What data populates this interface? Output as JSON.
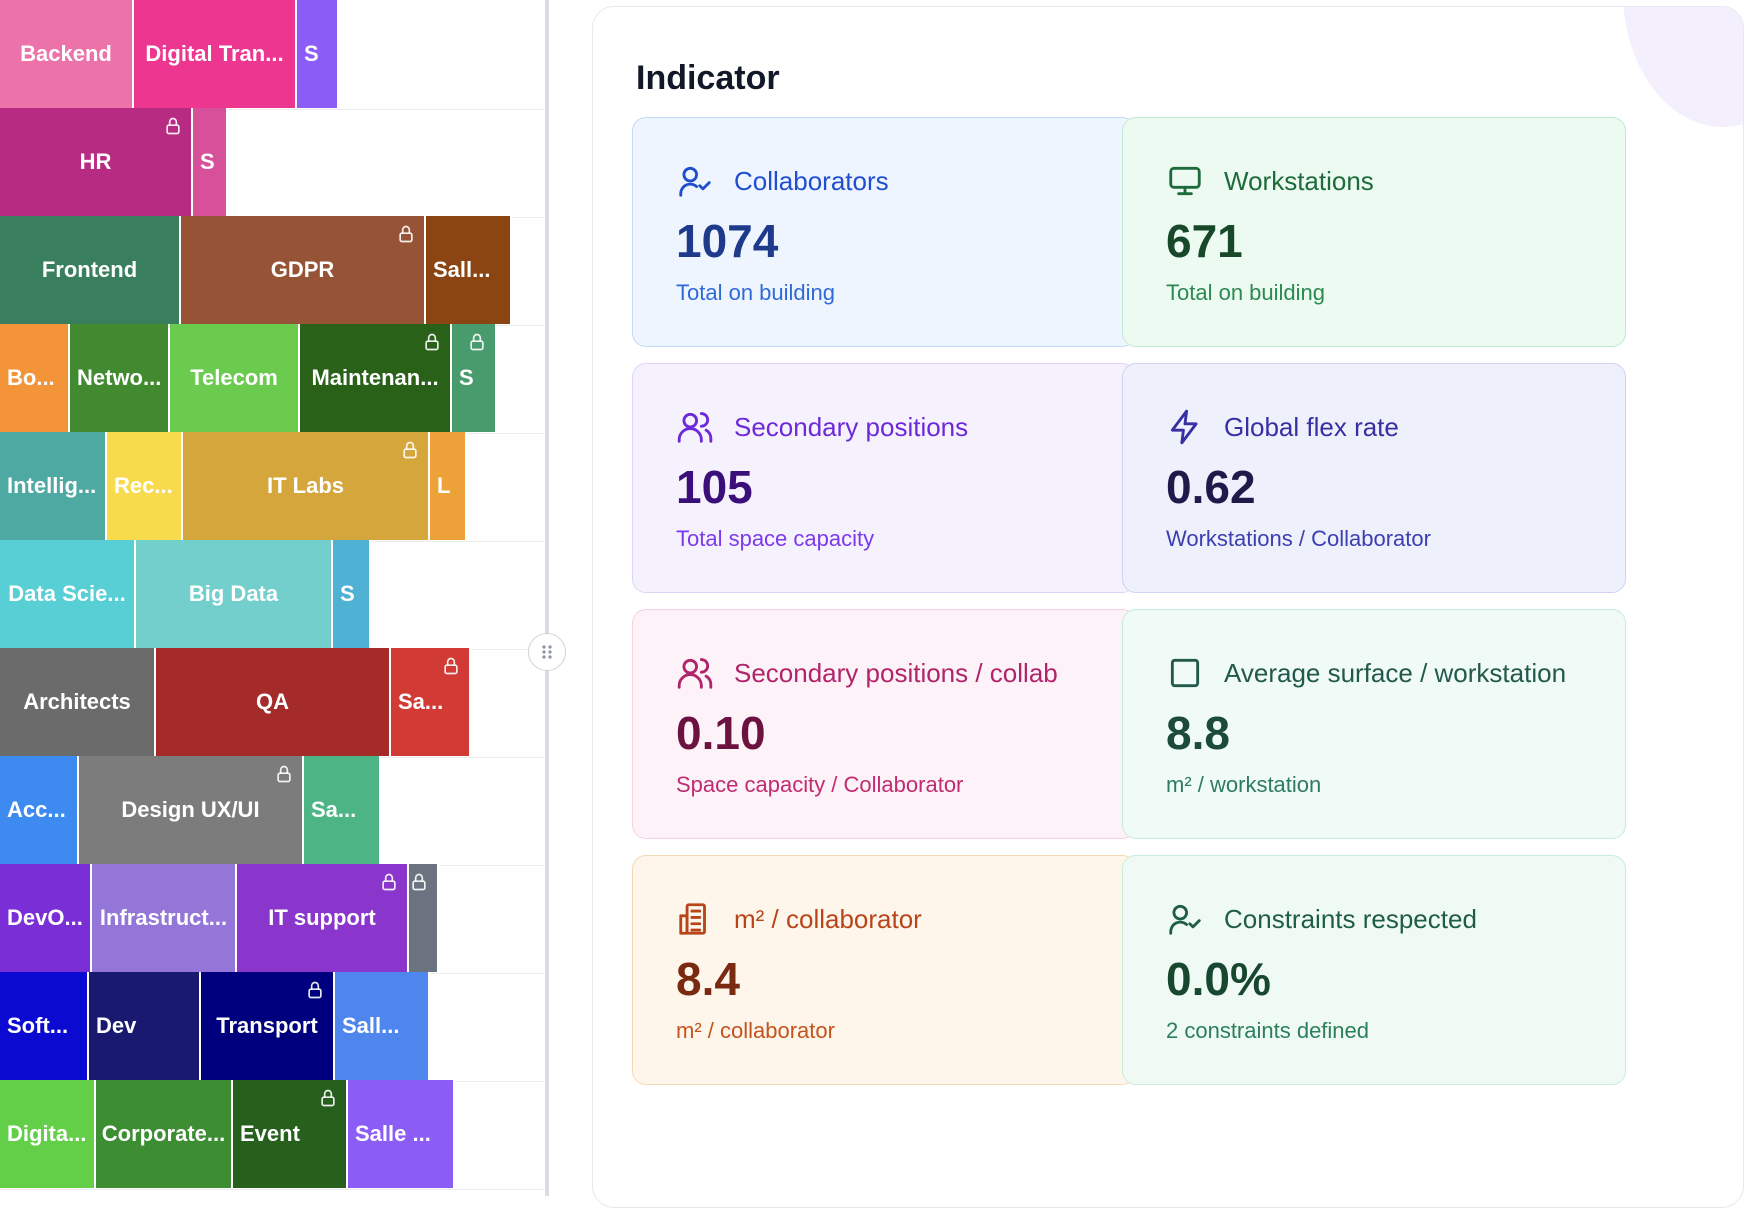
{
  "treemap": {
    "rows": [
      [
        {
          "label": "Backend",
          "color": "#ec72aa"
        },
        {
          "label": "Digital Tran...",
          "color": "#ec3690"
        },
        {
          "label": "S",
          "color": "#8b5cf6"
        }
      ],
      [
        {
          "label": "HR",
          "color": "#b72b82",
          "locked": true
        },
        {
          "label": "S",
          "color": "#d6509a"
        }
      ],
      [
        {
          "label": "Frontend",
          "color": "#3a7f5d"
        },
        {
          "label": "GDPR",
          "color": "#975335",
          "locked": true
        },
        {
          "label": "Sall...",
          "color": "#8b4513"
        }
      ],
      [
        {
          "label": "Bo...",
          "color": "#f29437"
        },
        {
          "label": "Netwo...",
          "color": "#418a30"
        },
        {
          "label": "Telecom",
          "color": "#6acb4f"
        },
        {
          "label": "Maintenan...",
          "color": "#2a6119",
          "locked": true
        },
        {
          "label": "S",
          "color": "#479b6c",
          "locked": true
        }
      ],
      [
        {
          "label": "Intellig...",
          "color": "#4fa9a3"
        },
        {
          "label": "Rec...",
          "color": "#f8da4d"
        },
        {
          "label": "IT Labs",
          "color": "#d4a63b",
          "locked": true
        },
        {
          "label": "L",
          "color": "#eca238"
        }
      ],
      [
        {
          "label": "Data Scie...",
          "color": "#58cfd5"
        },
        {
          "label": "Big Data",
          "color": "#73cfcb"
        },
        {
          "label": "S",
          "color": "#4fb1d3"
        }
      ],
      [
        {
          "label": "Architects",
          "color": "#6b6b6b"
        },
        {
          "label": "QA",
          "color": "#a52b2b"
        },
        {
          "label": "Sa...",
          "color": "#d13a35",
          "locked": true
        }
      ],
      [
        {
          "label": "Acc...",
          "color": "#3d8bf1"
        },
        {
          "label": "Design UX/UI",
          "color": "#7c7c7c",
          "locked": true
        },
        {
          "label": "Sa...",
          "color": "#4db585"
        }
      ],
      [
        {
          "label": "DevO...",
          "color": "#7a2ed6"
        },
        {
          "label": "Infrastruct...",
          "color": "#9376d8"
        },
        {
          "label": "IT support",
          "color": "#8a36cc",
          "locked": true
        },
        {
          "label": "",
          "color": "#6b7280",
          "locked": true
        }
      ],
      [
        {
          "label": "Soft...",
          "color": "#0a0ad0"
        },
        {
          "label": "Dev",
          "color": "#191970"
        },
        {
          "label": "Transport",
          "color": "#00007e",
          "locked": true
        },
        {
          "label": "Sall...",
          "color": "#4f86ee"
        }
      ],
      [
        {
          "label": "Digita...",
          "color": "#63cf49"
        },
        {
          "label": "Corporate...",
          "color": "#3d8d32"
        },
        {
          "label": "Event",
          "color": "#275f1c",
          "locked": true
        },
        {
          "label": "Salle ...",
          "color": "#8b5cf6"
        }
      ]
    ]
  },
  "panel": {
    "title": "Indicator",
    "cards": [
      {
        "title": "Collaborators",
        "value": "1074",
        "subtitle": "Total on building",
        "icon": "user-check-icon",
        "bg": "#eef5fe",
        "border": "#c4dbf8",
        "title_color": "#1f4fcf",
        "value_color": "#1e3a8a",
        "sub_color": "#2f6ad6"
      },
      {
        "title": "Workstations",
        "value": "671",
        "subtitle": "Total on building",
        "icon": "monitor-icon",
        "bg": "#edfaf2",
        "border": "#bfead0",
        "title_color": "#1d6b3a",
        "value_color": "#17482a",
        "sub_color": "#2b8a4f"
      },
      {
        "title": "Secondary positions",
        "value": "105",
        "subtitle": "Total space capacity",
        "icon": "users-icon",
        "bg": "#f6f2fd",
        "border": "#e0d4f6",
        "title_color": "#6d28d9",
        "value_color": "#3b0f7a",
        "sub_color": "#7c3aed"
      },
      {
        "title": "Global flex rate",
        "value": "0.62",
        "subtitle": "Workstations / Collaborator",
        "icon": "lightning-icon",
        "bg": "#eef0fb",
        "border": "#cfd3f2",
        "title_color": "#3730a3",
        "value_color": "#1e1b4b",
        "sub_color": "#3b3fb0"
      },
      {
        "title": "Secondary positions / collab",
        "value": "0.10",
        "subtitle": "Space capacity / Collaborator",
        "icon": "users-icon",
        "bg": "#fdf2f7",
        "border": "#f6d1e2",
        "title_color": "#b0246b",
        "value_color": "#6b1240",
        "sub_color": "#c02c72"
      },
      {
        "title": "Average surface / workstation",
        "value": "8.8",
        "subtitle": "m² / workstation",
        "icon": "square-icon",
        "bg": "#f0faf7",
        "border": "#c6ebdc",
        "title_color": "#23594a",
        "value_color": "#1c4a3d",
        "sub_color": "#2e7b62"
      },
      {
        "title": "m² / collaborator",
        "value": "8.4",
        "subtitle": "m² / collaborator",
        "icon": "building-icon",
        "bg": "#fff6eb",
        "border": "#f5d9b5",
        "title_color": "#b8451a",
        "value_color": "#7a2a10",
        "sub_color": "#c2541e"
      },
      {
        "title": "Constraints respected",
        "value": "0.0%",
        "subtitle": "2 constraints defined",
        "icon": "user-check-icon",
        "bg": "#f0faf5",
        "border": "#c8ecd9",
        "title_color": "#1f5e43",
        "value_color": "#17482f",
        "sub_color": "#2b8059"
      }
    ]
  }
}
